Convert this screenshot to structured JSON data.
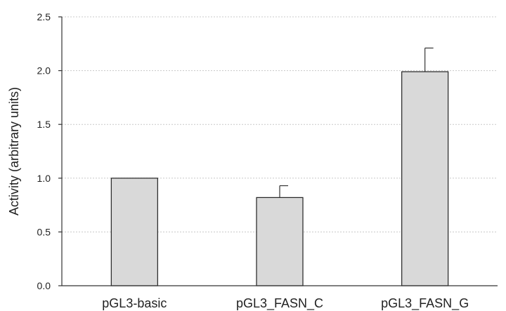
{
  "chart_data": {
    "type": "bar",
    "title": "",
    "xlabel": "",
    "ylabel": "Activity (arbitrary units)",
    "categories": [
      "pGL3-basic",
      "pGL3_FASN_C",
      "pGL3_FASN_G"
    ],
    "values": [
      1.0,
      0.82,
      1.99
    ],
    "error_bars": [
      0,
      0.11,
      0.22
    ],
    "ylim": [
      0,
      2.5
    ],
    "yticks": [
      "0.0",
      "0.5",
      "1.0",
      "1.5",
      "2.0",
      "2.5"
    ],
    "grid": true,
    "bar_fill": "#d9d9d9",
    "bar_edge": "#222222"
  }
}
